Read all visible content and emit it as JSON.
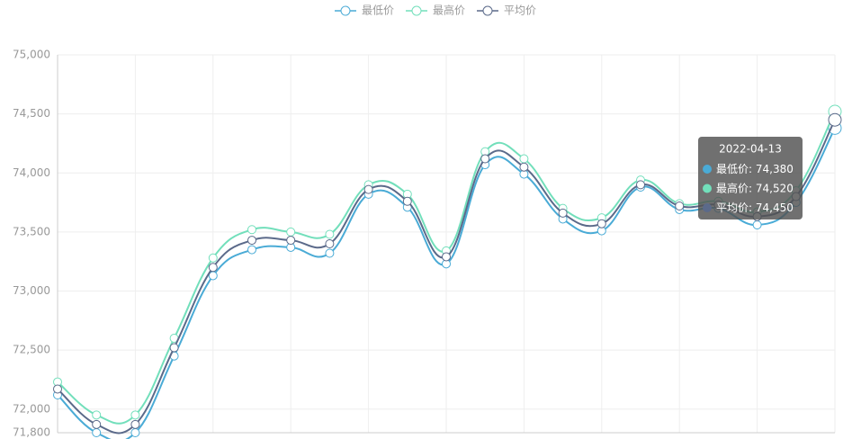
{
  "chart_data": {
    "type": "line",
    "categories": [
      null,
      null,
      null,
      null,
      null,
      null,
      null,
      null,
      null,
      null,
      null,
      null,
      null,
      null,
      null,
      null,
      null,
      null,
      null,
      null,
      "2022-04-13"
    ],
    "series": [
      {
        "name": "最低价",
        "color": "#4aabd6",
        "values": [
          72120,
          71800,
          71800,
          72450,
          73130,
          73350,
          73370,
          73320,
          73820,
          73710,
          73230,
          74070,
          73990,
          73610,
          73510,
          73880,
          73690,
          73700,
          73560,
          73750,
          74380
        ],
        "value_labels": [
          null,
          null,
          null,
          null,
          null,
          null,
          null,
          null,
          null,
          null,
          null,
          null,
          null,
          null,
          null,
          null,
          null,
          null,
          null,
          null,
          "74,380"
        ]
      },
      {
        "name": "最高价",
        "color": "#72dfbb",
        "values": [
          72230,
          71950,
          71950,
          72600,
          73280,
          73520,
          73500,
          73480,
          73900,
          73820,
          73340,
          74180,
          74120,
          73700,
          73620,
          73940,
          73740,
          73760,
          73670,
          73850,
          74520
        ],
        "value_labels": [
          null,
          null,
          null,
          null,
          null,
          null,
          null,
          null,
          null,
          null,
          null,
          null,
          null,
          null,
          null,
          null,
          null,
          null,
          null,
          null,
          "74,520"
        ]
      },
      {
        "name": "平均价",
        "color": "#5b6a8a",
        "values": [
          72170,
          71870,
          71870,
          72520,
          73200,
          73430,
          73430,
          73400,
          73860,
          73760,
          73290,
          74120,
          74050,
          73660,
          73570,
          73900,
          73720,
          73730,
          73630,
          73800,
          74450
        ],
        "value_labels": [
          null,
          null,
          null,
          null,
          null,
          null,
          null,
          null,
          null,
          null,
          null,
          null,
          null,
          null,
          null,
          null,
          null,
          null,
          null,
          null,
          "74,450"
        ]
      }
    ],
    "ylim": [
      71800,
      75000
    ],
    "yticks": [
      {
        "value": 71800,
        "label": "71,800"
      },
      {
        "value": 72000,
        "label": "72,000"
      },
      {
        "value": 72500,
        "label": "72,500"
      },
      {
        "value": 73000,
        "label": "73,000"
      },
      {
        "value": 73500,
        "label": "73,500"
      },
      {
        "value": 74000,
        "label": "74,000"
      },
      {
        "value": 74500,
        "label": "74,500"
      },
      {
        "value": 75000,
        "label": "75,000"
      }
    ],
    "grid": true,
    "legend": "top"
  }
}
